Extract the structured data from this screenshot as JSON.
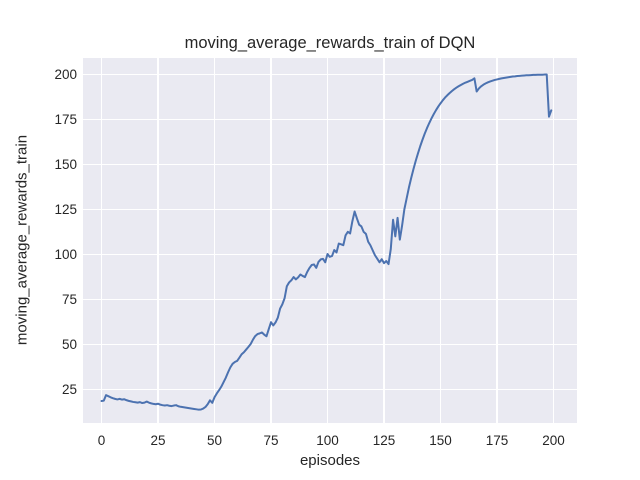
{
  "figure": {
    "title": "moving_average_rewards_train of DQN",
    "xlabel": "episodes",
    "ylabel": "moving_average_rewards_train"
  },
  "colors": {
    "figure_background": "#ffffff",
    "axes_background": "#eaeaf2",
    "grid": "#ffffff",
    "line": "#4c72b0",
    "text": "#262626"
  },
  "chart_data": {
    "type": "line",
    "title": "moving_average_rewards_train of DQN",
    "xlabel": "episodes",
    "ylabel": "moving_average_rewards_train",
    "xlim": [
      -8.2,
      210.4
    ],
    "ylim": [
      6.3,
      209.1
    ],
    "xticks": [
      0,
      25,
      50,
      75,
      100,
      125,
      150,
      175,
      200
    ],
    "yticks": [
      25,
      50,
      75,
      100,
      125,
      150,
      175,
      200
    ],
    "grid": true,
    "legend_position": "none",
    "series": [
      {
        "name": "moving_average_rewards_train",
        "color": "#4c72b0",
        "x": [
          0,
          1,
          2,
          3,
          4,
          5,
          6,
          7,
          8,
          9,
          10,
          11,
          12,
          13,
          14,
          15,
          16,
          17,
          18,
          19,
          20,
          21,
          22,
          23,
          24,
          25,
          26,
          27,
          28,
          29,
          30,
          31,
          32,
          33,
          34,
          35,
          36,
          37,
          38,
          39,
          40,
          41,
          42,
          43,
          44,
          45,
          46,
          47,
          48,
          49,
          50,
          51,
          52,
          53,
          54,
          55,
          56,
          57,
          58,
          59,
          60,
          61,
          62,
          63,
          64,
          65,
          66,
          67,
          68,
          69,
          70,
          71,
          72,
          73,
          74,
          75,
          76,
          77,
          78,
          79,
          80,
          81,
          82,
          83,
          84,
          85,
          86,
          87,
          88,
          89,
          90,
          91,
          92,
          93,
          94,
          95,
          96,
          97,
          98,
          99,
          100,
          101,
          102,
          103,
          104,
          105,
          106,
          107,
          108,
          109,
          110,
          111,
          112,
          113,
          114,
          115,
          116,
          117,
          118,
          119,
          120,
          121,
          122,
          123,
          124,
          125,
          126,
          127,
          128,
          129,
          130,
          131,
          132,
          133,
          134,
          135,
          136,
          137,
          138,
          139,
          140,
          141,
          142,
          143,
          144,
          145,
          146,
          147,
          148,
          149,
          150,
          151,
          152,
          153,
          154,
          155,
          156,
          157,
          158,
          159,
          160,
          161,
          162,
          163,
          164,
          165,
          166,
          167,
          168,
          169,
          170,
          171,
          172,
          173,
          174,
          175,
          176,
          177,
          178,
          179,
          180,
          181,
          182,
          183,
          184,
          185,
          186,
          187,
          188,
          189,
          190,
          191,
          192,
          193,
          194,
          195,
          196,
          197,
          198,
          199
        ],
        "y": [
          18.5,
          18.7,
          21.8,
          21.2,
          20.6,
          20.1,
          19.7,
          19.4,
          19.7,
          19.3,
          19.5,
          19.0,
          18.6,
          18.3,
          18.0,
          17.8,
          17.6,
          17.9,
          17.4,
          17.6,
          18.2,
          17.6,
          17.2,
          16.9,
          16.7,
          17.0,
          16.5,
          16.2,
          16.0,
          16.2,
          15.9,
          15.7,
          16.0,
          16.2,
          15.6,
          15.3,
          15.1,
          14.9,
          14.7,
          14.5,
          14.3,
          14.1,
          13.9,
          13.7,
          13.8,
          14.3,
          15.2,
          16.8,
          18.9,
          17.5,
          20.6,
          22.7,
          24.5,
          26.5,
          29.0,
          31.5,
          34.5,
          37.2,
          39.2,
          40.2,
          40.8,
          42.6,
          44.5,
          45.6,
          47.1,
          48.6,
          50.2,
          52.6,
          54.6,
          55.7,
          56.1,
          56.6,
          55.4,
          54.5,
          58.5,
          62.3,
          60.5,
          62.2,
          64.8,
          69.8,
          72.2,
          75.6,
          82.3,
          84.4,
          85.6,
          87.4,
          86.1,
          87.2,
          88.8,
          88.0,
          87.4,
          90.2,
          92.4,
          94.1,
          94.4,
          92.5,
          95.8,
          97.2,
          97.5,
          95.6,
          100.2,
          98.6,
          99.1,
          102.4,
          101.1,
          106.0,
          105.6,
          105.1,
          110.6,
          112.5,
          111.6,
          118.4,
          123.8,
          120.0,
          116.5,
          115.5,
          112.5,
          111.4,
          107.0,
          105.0,
          102.2,
          99.5,
          97.6,
          95.6,
          97.3,
          95.1,
          96.3,
          94.6,
          103.0,
          119.2,
          110.0,
          120.3,
          108.2,
          116.0,
          125.0,
          131.0,
          137.0,
          142.3,
          147.2,
          151.8,
          156.0,
          160.0,
          163.6,
          167.0,
          170.1,
          172.9,
          175.5,
          177.9,
          180.1,
          182.1,
          183.9,
          185.6,
          187.1,
          188.4,
          189.6,
          190.7,
          191.7,
          192.6,
          193.4,
          194.1,
          194.8,
          195.4,
          195.9,
          196.4,
          196.9,
          197.8,
          190.5,
          192.2,
          193.4,
          194.3,
          195.0,
          195.6,
          196.1,
          196.5,
          196.9,
          197.2,
          197.5,
          197.8,
          198.0,
          198.2,
          198.4,
          198.6,
          198.8,
          198.9,
          199.1,
          199.2,
          199.3,
          199.4,
          199.5,
          199.5,
          199.6,
          199.7,
          199.7,
          199.8,
          199.8,
          199.8,
          199.9,
          199.9,
          176.5,
          180.0
        ]
      }
    ]
  }
}
